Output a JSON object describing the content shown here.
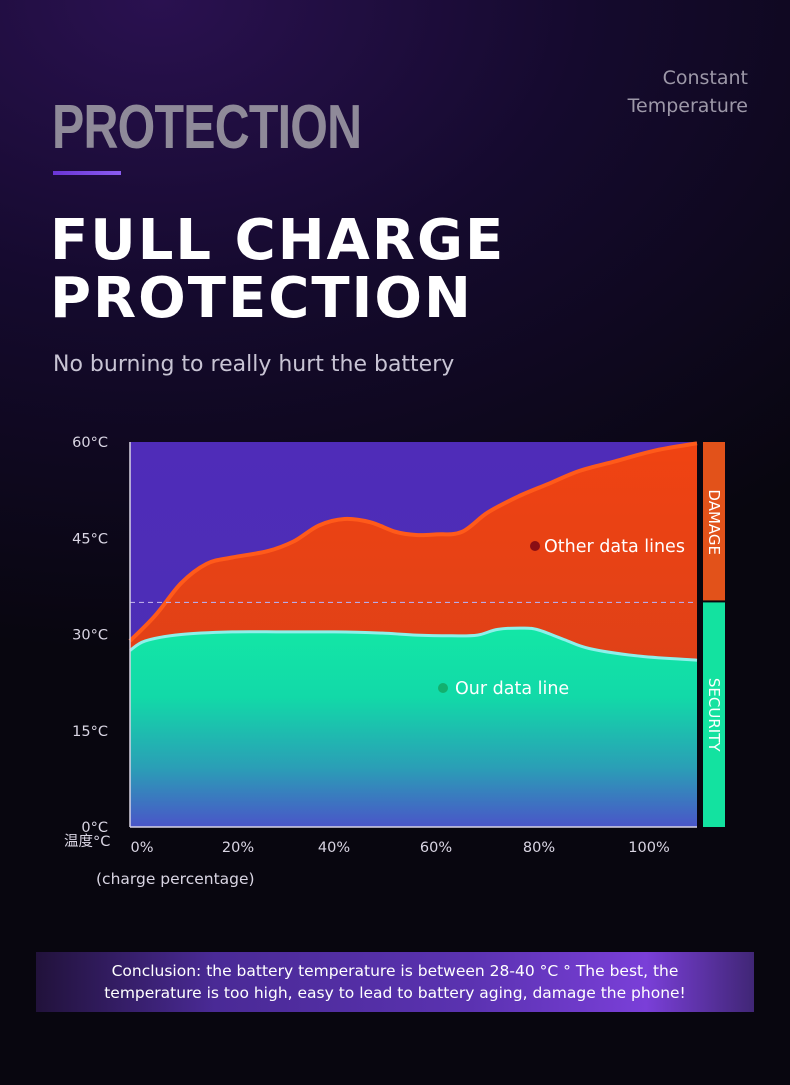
{
  "header": {
    "top_right_line1": "Constant",
    "top_right_line2": "Temperature",
    "watermark": "PROTECTION",
    "headline_line1": "FULL CHARGE",
    "headline_line2": "PROTECTION",
    "subtitle": "No burning to really hurt the battery"
  },
  "chart_data": {
    "type": "area",
    "title": "",
    "xlabel": "(charge percentage)",
    "ylabel": "温度°C",
    "x_ticks": [
      "0%",
      "20%",
      "40%",
      "60%",
      "80%",
      "100%"
    ],
    "y_ticks": [
      "0°C",
      "15°C",
      "30°C",
      "45°C",
      "60°C"
    ],
    "xlim": [
      0,
      111
    ],
    "ylim": [
      0,
      60
    ],
    "threshold": 35,
    "series": [
      {
        "name": "Other data lines",
        "color": "#f24a12",
        "x": [
          0,
          5,
          10,
          15,
          20,
          27,
          32,
          37,
          42,
          47,
          52,
          56,
          60,
          65,
          70,
          76,
          82,
          88,
          95,
          103,
          111
        ],
        "y": [
          29,
          33,
          38,
          41,
          42,
          43,
          44.5,
          47,
          48,
          47.5,
          46,
          45.5,
          45.6,
          46,
          49,
          51.5,
          53.5,
          55.5,
          57,
          58.7,
          59.8
        ]
      },
      {
        "name": "Our data line",
        "color": "#2ee8b0",
        "x": [
          0,
          3,
          10,
          20,
          30,
          40,
          50,
          56,
          63,
          68,
          72,
          77,
          80,
          85,
          90,
          100,
          111
        ],
        "y": [
          27.5,
          29,
          30,
          30.4,
          30.4,
          30.4,
          30.2,
          29.9,
          29.8,
          29.9,
          30.8,
          31,
          30.7,
          29.2,
          27.8,
          26.6,
          26
        ]
      }
    ],
    "zones": [
      {
        "label": "DAMAGE",
        "color": "#e2521a",
        "from": 35,
        "to": 60
      },
      {
        "label": "SECURITY",
        "color": "#13e2a0",
        "from": 0,
        "to": 35
      }
    ]
  },
  "conclusion": {
    "text": "Conclusion: the battery temperature is between 28-40 °C ° The best, the temperature is too high, easy to lead to battery aging, damage the phone!"
  }
}
